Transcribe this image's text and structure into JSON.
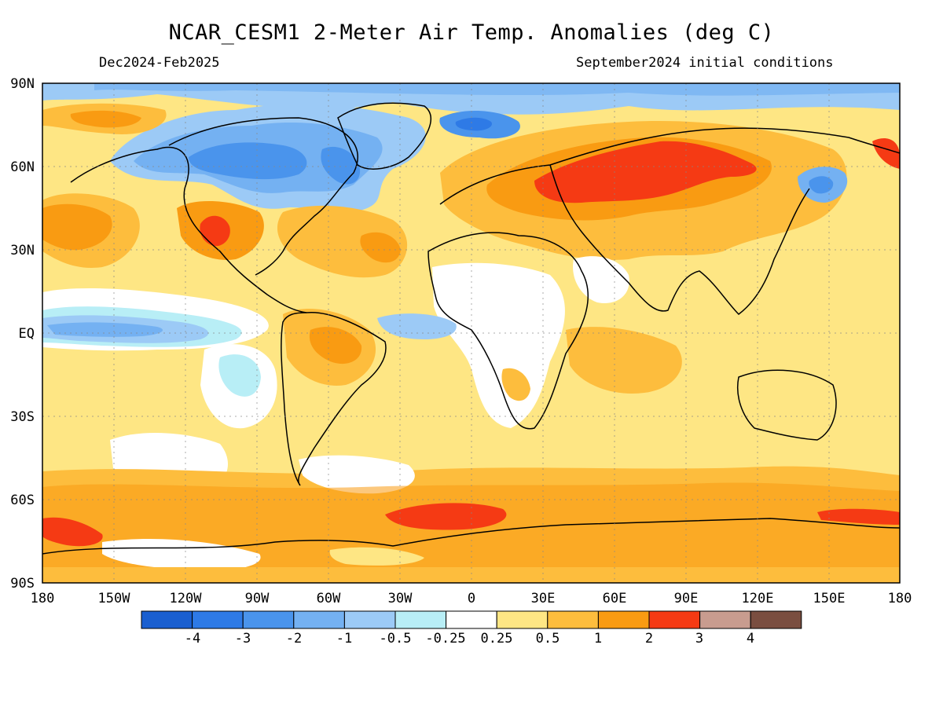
{
  "header": {
    "title": "NCAR_CESM1 2-Meter Air Temp. Anomalies (deg C)",
    "period": "Dec2024-Feb2025",
    "initial_conditions": "September2024 initial conditions"
  },
  "map": {
    "lat_labels": [
      "90N",
      "60N",
      "30N",
      "EQ",
      "30S",
      "60S",
      "90S"
    ],
    "lon_labels": [
      "180",
      "150W",
      "120W",
      "90W",
      "60W",
      "30W",
      "0",
      "30E",
      "60E",
      "90E",
      "120E",
      "150E",
      "180"
    ]
  },
  "colorbar": {
    "labels": [
      "-4",
      "-3",
      "-2",
      "-1",
      "-0.5",
      "-0.25",
      "0.25",
      "0.5",
      "1",
      "2",
      "3",
      "4"
    ],
    "colors": [
      "#1a5fd0",
      "#2e7ae6",
      "#4a94ec",
      "#74b1f2",
      "#9ccaf6",
      "#b8eef6",
      "#ffffff",
      "#fee684",
      "#fdbd3d",
      "#f99b12",
      "#f53a14",
      "#c89c8f",
      "#7a4e40"
    ]
  }
}
